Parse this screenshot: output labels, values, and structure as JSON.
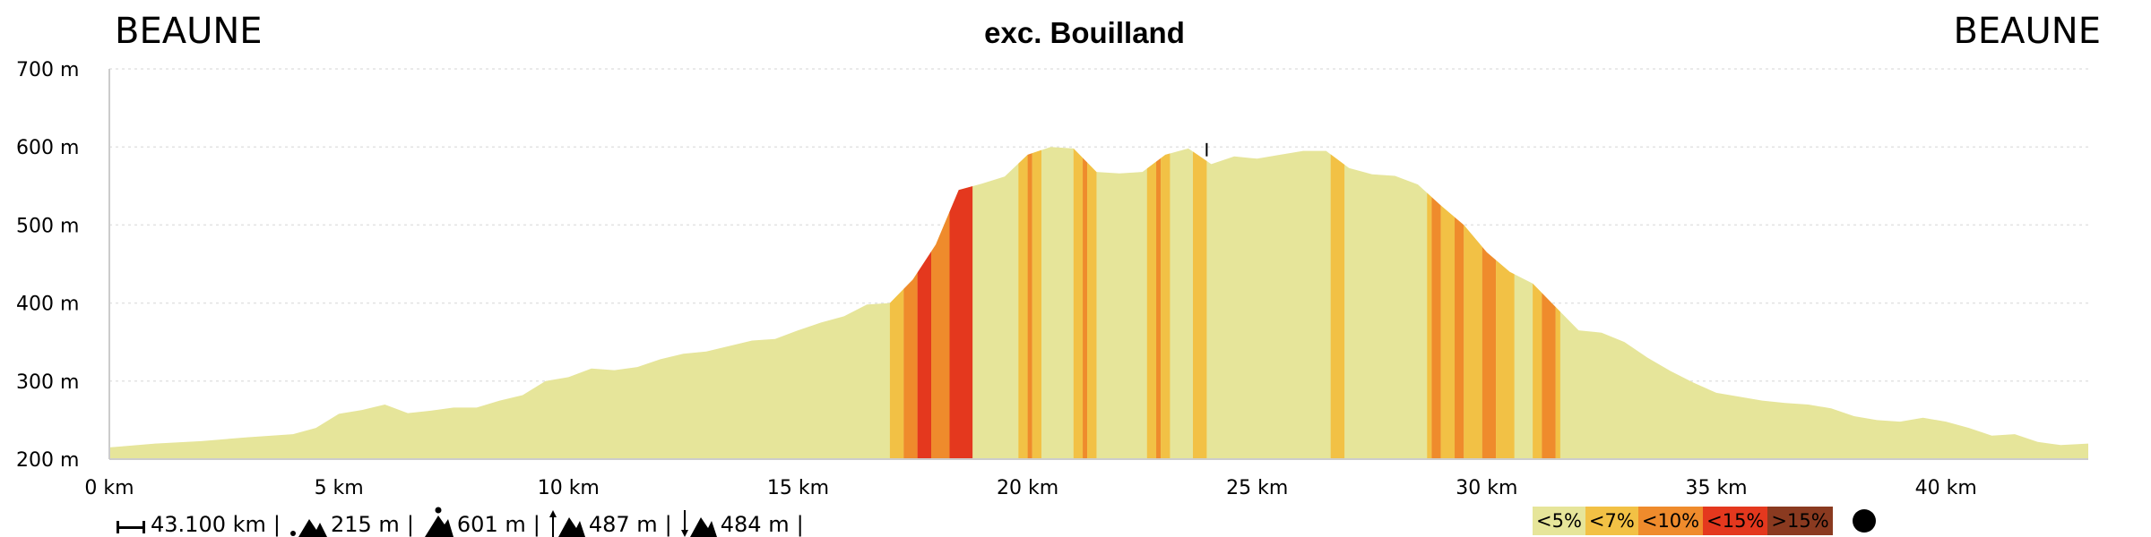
{
  "header": {
    "start": "BEAUNE",
    "title": "exc. Bouilland",
    "end": "BEAUNE"
  },
  "stats": {
    "distance": "43.100 km",
    "min_altitude": "215 m",
    "max_altitude": "601 m",
    "ascent": "487 m",
    "descent": "484 m"
  },
  "legend": [
    {
      "label": "<5%",
      "color": "#e6e59a"
    },
    {
      "label": "<7%",
      "color": "#f2c145"
    },
    {
      "label": "<10%",
      "color": "#ef8b2c"
    },
    {
      "label": "<15%",
      "color": "#e4381e"
    },
    {
      "label": ">15%",
      "color": "#8a3a20"
    }
  ],
  "chart_data": {
    "type": "area",
    "title": "exc. Bouilland",
    "xlabel": "",
    "ylabel": "",
    "xlim": [
      0,
      43.1
    ],
    "ylim": [
      200,
      700
    ],
    "x_ticks": [
      "0 km",
      "5 km",
      "10 km",
      "15 km",
      "20 km",
      "25 km",
      "30 km",
      "35 km",
      "40 km"
    ],
    "y_ticks": [
      "200 m",
      "300 m",
      "400 m",
      "500 m",
      "600 m",
      "700 m"
    ],
    "grid": true,
    "profile": [
      [
        0,
        215
      ],
      [
        1,
        220
      ],
      [
        2,
        223
      ],
      [
        3,
        228
      ],
      [
        4,
        232
      ],
      [
        4.5,
        240
      ],
      [
        5,
        258
      ],
      [
        5.5,
        263
      ],
      [
        6,
        270
      ],
      [
        6.5,
        259
      ],
      [
        7,
        262
      ],
      [
        7.5,
        266
      ],
      [
        8,
        266
      ],
      [
        8.5,
        275
      ],
      [
        9,
        282
      ],
      [
        9.5,
        300
      ],
      [
        10,
        305
      ],
      [
        10.5,
        316
      ],
      [
        11,
        314
      ],
      [
        11.5,
        318
      ],
      [
        12,
        328
      ],
      [
        12.5,
        335
      ],
      [
        13,
        338
      ],
      [
        13.5,
        345
      ],
      [
        14,
        352
      ],
      [
        14.5,
        354
      ],
      [
        15,
        365
      ],
      [
        15.5,
        375
      ],
      [
        16,
        383
      ],
      [
        16.5,
        398
      ],
      [
        17,
        400
      ],
      [
        17.5,
        430
      ],
      [
        18,
        475
      ],
      [
        18.5,
        545
      ],
      [
        19,
        553
      ],
      [
        19.5,
        562
      ],
      [
        20,
        590
      ],
      [
        20.5,
        600
      ],
      [
        21,
        598
      ],
      [
        21.5,
        568
      ],
      [
        22,
        566
      ],
      [
        22.5,
        568
      ],
      [
        23,
        590
      ],
      [
        23.5,
        598
      ],
      [
        24,
        578
      ],
      [
        24.5,
        588
      ],
      [
        25,
        585
      ],
      [
        25.5,
        590
      ],
      [
        26,
        595
      ],
      [
        26.5,
        595
      ],
      [
        27,
        573
      ],
      [
        27.5,
        565
      ],
      [
        28,
        563
      ],
      [
        28.5,
        552
      ],
      [
        29,
        525
      ],
      [
        29.5,
        500
      ],
      [
        30,
        465
      ],
      [
        30.5,
        440
      ],
      [
        31,
        425
      ],
      [
        31.5,
        395
      ],
      [
        32,
        365
      ],
      [
        32.5,
        362
      ],
      [
        33,
        350
      ],
      [
        33.5,
        330
      ],
      [
        34,
        313
      ],
      [
        34.5,
        298
      ],
      [
        35,
        285
      ],
      [
        35.5,
        280
      ],
      [
        36,
        275
      ],
      [
        36.5,
        272
      ],
      [
        37,
        270
      ],
      [
        37.5,
        265
      ],
      [
        38,
        255
      ],
      [
        38.5,
        250
      ],
      [
        39,
        248
      ],
      [
        39.5,
        253
      ],
      [
        40,
        248
      ],
      [
        40.5,
        240
      ],
      [
        41,
        230
      ],
      [
        41.5,
        232
      ],
      [
        42,
        222
      ],
      [
        42.5,
        218
      ],
      [
        43.1,
        220
      ]
    ],
    "gradient_bands": [
      {
        "x0": 17.0,
        "x1": 17.3,
        "class": "<7%"
      },
      {
        "x0": 17.3,
        "x1": 17.6,
        "class": "<10%"
      },
      {
        "x0": 17.6,
        "x1": 17.9,
        "class": "<15%"
      },
      {
        "x0": 17.9,
        "x1": 18.3,
        "class": "<10%"
      },
      {
        "x0": 18.3,
        "x1": 18.8,
        "class": "<15%"
      },
      {
        "x0": 19.8,
        "x1": 20.0,
        "class": "<7%"
      },
      {
        "x0": 20.0,
        "x1": 20.1,
        "class": "<10%"
      },
      {
        "x0": 20.1,
        "x1": 20.3,
        "class": "<7%"
      },
      {
        "x0": 21.0,
        "x1": 21.2,
        "class": "<7%"
      },
      {
        "x0": 21.2,
        "x1": 21.3,
        "class": "<10%"
      },
      {
        "x0": 21.3,
        "x1": 21.5,
        "class": "<7%"
      },
      {
        "x0": 22.6,
        "x1": 22.8,
        "class": "<7%"
      },
      {
        "x0": 22.8,
        "x1": 22.9,
        "class": "<10%"
      },
      {
        "x0": 22.9,
        "x1": 23.1,
        "class": "<7%"
      },
      {
        "x0": 23.6,
        "x1": 23.9,
        "class": "<7%"
      },
      {
        "x0": 26.6,
        "x1": 26.9,
        "class": "<7%"
      },
      {
        "x0": 28.7,
        "x1": 28.8,
        "class": "<7%"
      },
      {
        "x0": 28.8,
        "x1": 29.0,
        "class": "<10%"
      },
      {
        "x0": 29.0,
        "x1": 29.3,
        "class": "<7%"
      },
      {
        "x0": 29.3,
        "x1": 29.5,
        "class": "<10%"
      },
      {
        "x0": 29.5,
        "x1": 29.9,
        "class": "<7%"
      },
      {
        "x0": 29.9,
        "x1": 30.2,
        "class": "<10%"
      },
      {
        "x0": 30.2,
        "x1": 30.6,
        "class": "<7%"
      },
      {
        "x0": 31.0,
        "x1": 31.2,
        "class": "<7%"
      },
      {
        "x0": 31.2,
        "x1": 31.5,
        "class": "<10%"
      },
      {
        "x0": 31.5,
        "x1": 31.6,
        "class": "<7%"
      }
    ]
  }
}
